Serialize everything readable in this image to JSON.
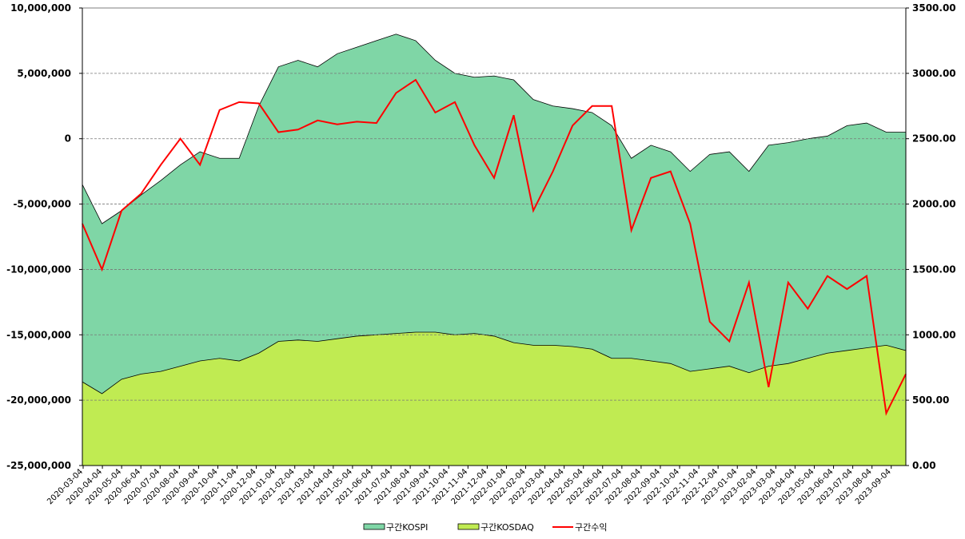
{
  "chart_data": {
    "type": "area",
    "title": "",
    "xlabel": "",
    "ylabel": "",
    "grid": true,
    "legend_position": "bottom",
    "x": [
      "2020-03-04",
      "2020-04-04",
      "2020-05-04",
      "2020-06-04",
      "2020-07-04",
      "2020-08-04",
      "2020-09-04",
      "2020-10-04",
      "2020-11-04",
      "2020-12-04",
      "2021-01-04",
      "2021-02-04",
      "2021-03-04",
      "2021-04-04",
      "2021-05-04",
      "2021-06-04",
      "2021-07-04",
      "2021-08-04",
      "2021-09-04",
      "2021-10-04",
      "2021-11-04",
      "2021-12-04",
      "2022-01-04",
      "2022-02-04",
      "2022-03-04",
      "2022-04-04",
      "2022-05-04",
      "2022-06-04",
      "2022-07-04",
      "2022-08-04",
      "2022-09-04",
      "2022-10-04",
      "2022-11-04",
      "2022-12-04",
      "2023-01-04",
      "2023-02-04",
      "2023-03-04",
      "2023-04-04",
      "2023-05-04",
      "2023-06-04",
      "2023-07-04",
      "2023-08-04",
      "2023-09-04"
    ],
    "y_left": {
      "ylim": [
        -25000000,
        10000000
      ],
      "ticks": [
        "10,000,000",
        "5,000,000",
        "0",
        "-5,000,000",
        "-10,000,000",
        "-15,000,000",
        "-20,000,000",
        "-25,000,000"
      ]
    },
    "y_right": {
      "ylim": [
        0,
        3500
      ],
      "ticks": [
        "3500.00",
        "3000.00",
        "2500.00",
        "2000.00",
        "1500.00",
        "1000.00",
        "500.00",
        "0.00"
      ]
    },
    "series": [
      {
        "name": "구간KOSPI",
        "axis": "right",
        "color": "#7fd6a6",
        "values": [
          2150,
          1850,
          1950,
          2070,
          2180,
          2300,
          2400,
          2350,
          2350,
          2750,
          3050,
          3100,
          3050,
          3150,
          3200,
          3250,
          3300,
          3250,
          3100,
          3000,
          2970,
          2980,
          2950,
          2800,
          2750,
          2730,
          2700,
          2600,
          2350,
          2450,
          2400,
          2250,
          2380,
          2400,
          2250,
          2450,
          2470,
          2500,
          2520,
          2600,
          2620,
          2550,
          2550
        ]
      },
      {
        "name": "구간KOSDAQ",
        "axis": "right",
        "color": "#c0eb52",
        "values": [
          640,
          550,
          660,
          700,
          720,
          760,
          800,
          820,
          800,
          860,
          950,
          960,
          950,
          970,
          990,
          1000,
          1010,
          1020,
          1020,
          1000,
          1010,
          990,
          940,
          920,
          920,
          910,
          890,
          820,
          820,
          800,
          780,
          720,
          740,
          760,
          710,
          760,
          780,
          820,
          860,
          880,
          900,
          920,
          880
        ]
      },
      {
        "name": "구간수익",
        "axis": "left",
        "color": "#ff0000",
        "values": [
          -6500000,
          -10000000,
          -5500000,
          -4200000,
          -2000000,
          0,
          -2000000,
          2200000,
          2800000,
          2700000,
          500000,
          700000,
          1400000,
          1100000,
          1300000,
          1200000,
          3500000,
          4500000,
          2000000,
          2800000,
          -500000,
          -3000000,
          1800000,
          -5500000,
          -2500000,
          1000000,
          2500000,
          2500000,
          -7000000,
          -3000000,
          -2500000,
          -6500000,
          -14000000,
          -15500000,
          -11000000,
          -19000000,
          -11000000,
          -13000000,
          -10500000,
          -11500000,
          -10500000,
          -21000000,
          -18000000
        ]
      }
    ]
  },
  "legend": [
    {
      "label": "구간KOSPI",
      "color": "#7fd6a6",
      "kind": "box"
    },
    {
      "label": "구간KOSDAQ",
      "color": "#c0eb52",
      "kind": "box"
    },
    {
      "label": "구간수익",
      "color": "#ff0000",
      "kind": "line"
    }
  ]
}
